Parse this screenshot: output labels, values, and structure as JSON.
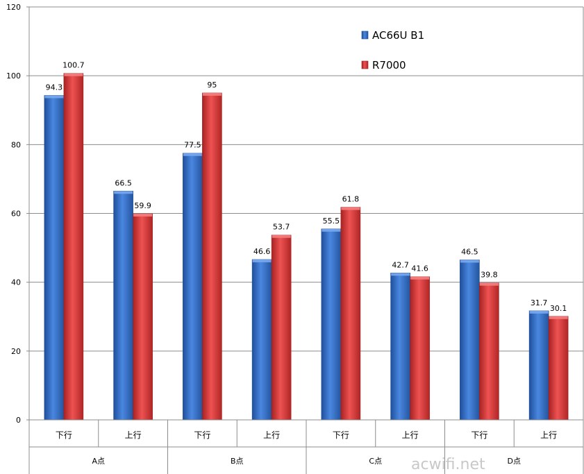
{
  "chart_data": {
    "type": "bar",
    "groups": [
      "A点",
      "B点",
      "C点",
      "D点"
    ],
    "categories": [
      "下行",
      "上行",
      "下行",
      "上行",
      "下行",
      "上行",
      "下行",
      "上行"
    ],
    "series": [
      {
        "name": "AC66U B1",
        "color": "#2e67c2",
        "values": [
          94.3,
          66.5,
          77.5,
          46.6,
          55.5,
          42.7,
          46.5,
          31.7
        ]
      },
      {
        "name": "R7000",
        "color": "#d93636",
        "values": [
          100.7,
          59.9,
          95,
          53.7,
          61.8,
          41.6,
          39.8,
          30.1
        ]
      }
    ],
    "value_labels": [
      [
        "94.3",
        "66.5",
        "77.5",
        "46.6",
        "55.5",
        "42.7",
        "46.5",
        "31.7"
      ],
      [
        "100.7",
        "59.9",
        "95",
        "53.7",
        "61.8",
        "41.6",
        "39.8",
        "30.1"
      ]
    ],
    "ylim": [
      0,
      120
    ],
    "yticks": [
      "0",
      "20",
      "40",
      "60",
      "80",
      "100",
      "120"
    ],
    "grid": true,
    "legend_position": "top-right"
  },
  "watermark": "acwifi.net"
}
